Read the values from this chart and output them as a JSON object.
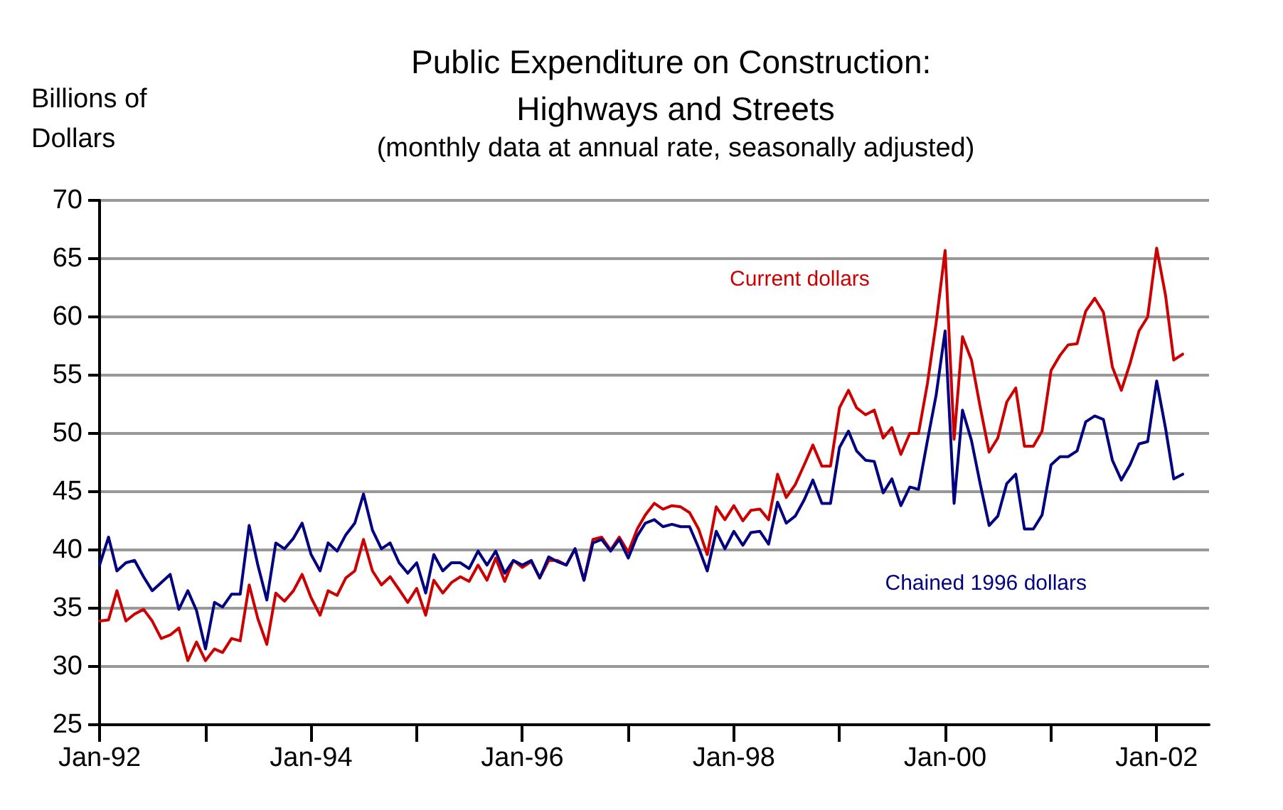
{
  "chart_data": {
    "type": "line",
    "title": "Public Expenditure on Construction: Highways and Streets",
    "subtitle": "(monthly data at annual rate, seasonally adjusted)",
    "ylabel": "Billions of Dollars",
    "x": [
      "1992-01",
      "1992-02",
      "1992-03",
      "1992-04",
      "1992-05",
      "1992-06",
      "1992-07",
      "1992-08",
      "1992-09",
      "1992-10",
      "1992-11",
      "1992-12",
      "1993-01",
      "1993-02",
      "1993-03",
      "1993-04",
      "1993-05",
      "1993-06",
      "1993-07",
      "1993-08",
      "1993-09",
      "1993-10",
      "1993-11",
      "1993-12",
      "1994-01",
      "1994-02",
      "1994-03",
      "1994-04",
      "1994-05",
      "1994-06",
      "1994-07",
      "1994-08",
      "1994-09",
      "1994-10",
      "1994-11",
      "1994-12",
      "1995-01",
      "1995-02",
      "1995-03",
      "1995-04",
      "1995-05",
      "1995-06",
      "1995-07",
      "1995-08",
      "1995-09",
      "1995-10",
      "1995-11",
      "1995-12",
      "1996-01",
      "1996-02",
      "1996-03",
      "1996-04",
      "1996-05",
      "1996-06",
      "1996-07",
      "1996-08",
      "1996-09",
      "1996-10",
      "1996-11",
      "1996-12",
      "1997-01",
      "1997-02",
      "1997-03",
      "1997-04",
      "1997-05",
      "1997-06",
      "1997-07",
      "1997-08",
      "1997-09",
      "1997-10",
      "1997-11",
      "1997-12",
      "1998-01",
      "1998-02",
      "1998-03",
      "1998-04",
      "1998-05",
      "1998-06",
      "1998-07",
      "1998-08",
      "1998-09",
      "1998-10",
      "1998-11",
      "1998-12",
      "1999-01",
      "1999-02",
      "1999-03",
      "1999-04",
      "1999-05",
      "1999-06",
      "1999-07",
      "1999-08",
      "1999-09",
      "1999-10",
      "1999-11",
      "1999-12",
      "2000-01",
      "2000-02",
      "2000-03",
      "2000-04",
      "2000-05",
      "2000-06",
      "2000-07",
      "2000-08",
      "2000-09",
      "2000-10",
      "2000-11",
      "2000-12",
      "2001-01",
      "2001-02",
      "2001-03",
      "2001-04",
      "2001-05",
      "2001-06",
      "2001-07",
      "2001-08",
      "2001-09",
      "2001-10",
      "2001-11",
      "2001-12",
      "2002-01",
      "2002-02",
      "2002-03",
      "2002-04"
    ],
    "series": [
      {
        "name": "Current dollars",
        "color": "#cc0000",
        "values": [
          33.9,
          34.0,
          36.5,
          33.9,
          34.5,
          34.9,
          33.9,
          32.4,
          32.7,
          33.3,
          30.5,
          32.1,
          30.5,
          31.5,
          31.2,
          32.4,
          32.2,
          37.0,
          34.1,
          31.9,
          36.3,
          35.6,
          36.5,
          37.9,
          35.9,
          34.4,
          36.5,
          36.1,
          37.6,
          38.2,
          40.9,
          38.2,
          37.0,
          37.7,
          36.6,
          35.5,
          36.7,
          34.4,
          37.4,
          36.3,
          37.2,
          37.7,
          37.3,
          38.7,
          37.4,
          39.3,
          37.3,
          39.1,
          38.5,
          39.0,
          37.6,
          39.1,
          39.1,
          38.7,
          40.1,
          37.4,
          40.9,
          41.1,
          40.0,
          41.1,
          39.8,
          41.8,
          43.0,
          44.0,
          43.5,
          43.8,
          43.7,
          43.2,
          41.8,
          39.6,
          43.7,
          42.6,
          43.8,
          42.5,
          43.4,
          43.5,
          42.6,
          46.5,
          44.5,
          45.6,
          47.3,
          49.0,
          47.2,
          47.2,
          52.2,
          53.7,
          52.2,
          51.6,
          52.0,
          49.6,
          50.5,
          48.2,
          50.0,
          50.0,
          54.3,
          59.5,
          65.7,
          49.5,
          58.3,
          56.3,
          52.3,
          48.4,
          49.6,
          52.7,
          53.9,
          48.9,
          48.9,
          50.2,
          55.4,
          56.7,
          57.6,
          57.7,
          60.5,
          61.6,
          60.4,
          55.7,
          53.7,
          56.0,
          58.8,
          60.0,
          65.9,
          61.8,
          56.3,
          56.8
        ]
      },
      {
        "name": "Chained 1996 dollars",
        "color": "#000080",
        "values": [
          38.7,
          41.1,
          38.2,
          38.9,
          39.1,
          37.7,
          36.5,
          37.2,
          37.9,
          34.9,
          36.5,
          34.8,
          31.5,
          35.5,
          35.1,
          36.2,
          36.2,
          42.1,
          38.7,
          35.7,
          40.6,
          40.1,
          41.0,
          42.3,
          39.6,
          38.2,
          40.6,
          39.9,
          41.3,
          42.3,
          44.8,
          41.7,
          40.1,
          40.6,
          38.9,
          38.0,
          38.9,
          36.3,
          39.6,
          38.2,
          38.9,
          38.9,
          38.4,
          39.9,
          38.7,
          39.9,
          38.0,
          39.1,
          38.7,
          39.1,
          37.6,
          39.4,
          39.0,
          38.7,
          40.1,
          37.4,
          40.6,
          40.9,
          39.9,
          40.9,
          39.3,
          41.2,
          42.3,
          42.6,
          42.0,
          42.2,
          42.0,
          42.0,
          40.2,
          38.2,
          41.6,
          40.1,
          41.6,
          40.4,
          41.5,
          41.6,
          40.5,
          44.1,
          42.3,
          42.9,
          44.3,
          46.0,
          44.0,
          44.0,
          48.8,
          50.2,
          48.5,
          47.7,
          47.6,
          44.9,
          46.1,
          43.8,
          45.4,
          45.2,
          49.4,
          53.3,
          58.8,
          44.0,
          52.0,
          49.4,
          45.7,
          42.1,
          42.9,
          45.7,
          46.5,
          41.8,
          41.8,
          43.0,
          47.3,
          48.0,
          48.0,
          48.5,
          51.0,
          51.5,
          51.2,
          47.7,
          46.0,
          47.3,
          49.1,
          49.3,
          54.5,
          50.4,
          46.1,
          46.5
        ]
      }
    ],
    "xlim": [
      "1992-01",
      "2002-07"
    ],
    "xticks": [
      {
        "value": "1992-01",
        "label": "Jan-92"
      },
      {
        "value": "1993-01",
        "label": null
      },
      {
        "value": "1994-01",
        "label": "Jan-94"
      },
      {
        "value": "1995-01",
        "label": null
      },
      {
        "value": "1996-01",
        "label": "Jan-96"
      },
      {
        "value": "1997-01",
        "label": null
      },
      {
        "value": "1998-01",
        "label": "Jan-98"
      },
      {
        "value": "1999-01",
        "label": null
      },
      {
        "value": "2000-01",
        "label": "Jan-00"
      },
      {
        "value": "2001-01",
        "label": null
      },
      {
        "value": "2002-01",
        "label": "Jan-02"
      }
    ],
    "ylim": [
      25,
      70
    ],
    "yticks": [
      25,
      30,
      35,
      40,
      45,
      50,
      55,
      60,
      65,
      70
    ],
    "grid": "y",
    "legend": false,
    "marker": "none",
    "line_style": "solid"
  }
}
